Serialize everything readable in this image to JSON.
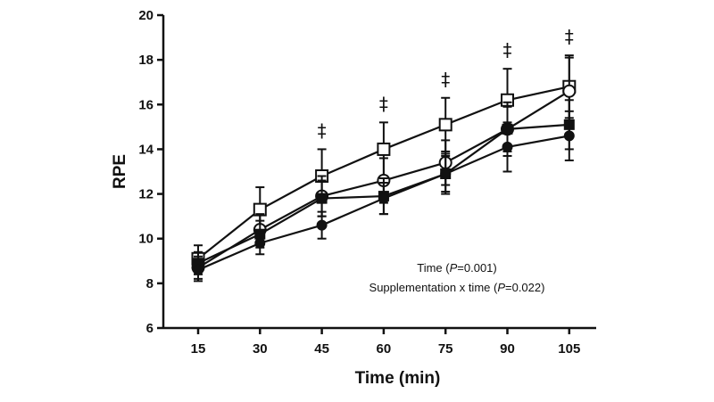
{
  "chart_data": {
    "type": "line",
    "xlabel": "Time (min)",
    "ylabel": "RPE",
    "x": [
      15,
      30,
      45,
      60,
      75,
      90,
      105
    ],
    "ylim": [
      6,
      20
    ],
    "yticks": [
      6,
      8,
      10,
      12,
      14,
      16,
      18,
      20
    ],
    "grid": false,
    "series": [
      {
        "marker": "open-square",
        "values": [
          9.1,
          11.3,
          12.8,
          14.0,
          15.1,
          16.2,
          16.8
        ],
        "err": [
          0.6,
          1.0,
          1.2,
          1.2,
          1.2,
          1.4,
          1.4
        ]
      },
      {
        "marker": "open-circle",
        "values": [
          8.7,
          10.4,
          11.9,
          12.6,
          13.4,
          14.9,
          16.6
        ],
        "err": [
          0.5,
          0.7,
          0.9,
          1.0,
          1.0,
          1.2,
          1.5
        ]
      },
      {
        "marker": "filled-square",
        "values": [
          8.9,
          10.2,
          11.8,
          11.9,
          12.9,
          14.9,
          15.1
        ],
        "err": [
          0.5,
          0.6,
          0.8,
          0.8,
          0.9,
          1.0,
          1.1
        ]
      },
      {
        "marker": "filled-circle",
        "values": [
          8.6,
          9.8,
          10.6,
          11.8,
          12.9,
          14.1,
          14.6
        ],
        "err": [
          0.5,
          0.5,
          0.6,
          0.7,
          0.8,
          1.1,
          1.1
        ]
      }
    ],
    "significance_marks": [
      {
        "x": 45,
        "symbol": "‡"
      },
      {
        "x": 60,
        "symbol": "‡"
      },
      {
        "x": 75,
        "symbol": "‡"
      },
      {
        "x": 90,
        "symbol": "‡"
      },
      {
        "x": 105,
        "symbol": "‡"
      }
    ],
    "annotations": [
      {
        "pre": "Time (",
        "italic": "P",
        "post": "=0.001)"
      },
      {
        "pre": "Supplementation x time (",
        "italic": "P",
        "post": "=0.022)"
      }
    ]
  }
}
